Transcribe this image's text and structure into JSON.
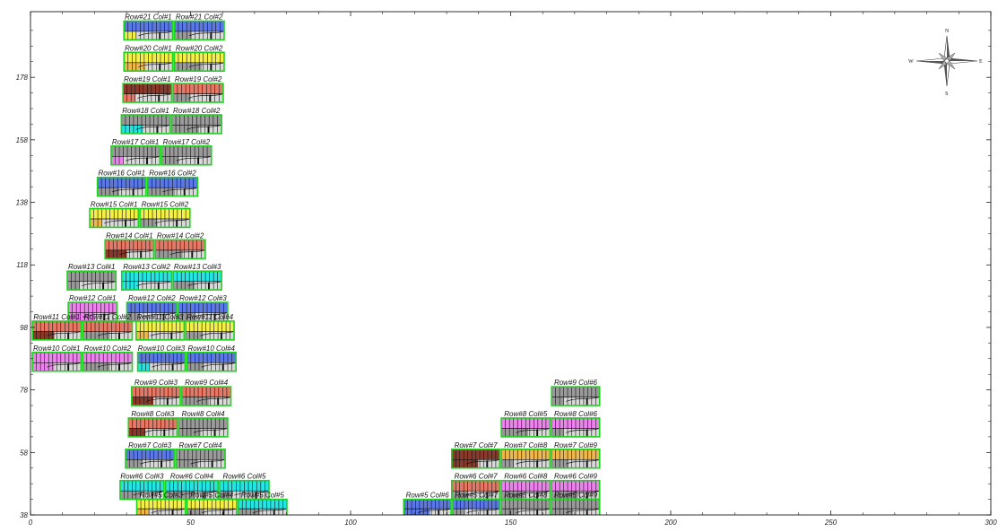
{
  "plot": {
    "x_range": [
      0,
      300
    ],
    "y_range": [
      38,
      199
    ],
    "x_ticks": [
      0,
      50,
      100,
      150,
      200,
      250,
      300
    ],
    "y_ticks": [
      38,
      58,
      78,
      98,
      118,
      138,
      158,
      178
    ]
  },
  "compass": {
    "n": "N",
    "s": "S",
    "e": "E",
    "w": "W"
  },
  "colors": {
    "blue": "#5a78e8",
    "cyan": "#22e6e6",
    "gray": "#9a9a9a",
    "yellow": "#f5f048",
    "orange": "#f0b848",
    "salmon": "#e87866",
    "brown": "#8a3a2a",
    "magenta": "#ee82ee",
    "outline": "#1fd21f"
  },
  "cells": [
    {
      "label": "Row#21 Col#1",
      "x0": 29.2,
      "x1": 44.4,
      "y0": 190,
      "y1": 196,
      "c1": "blue",
      "c2": "yellow"
    },
    {
      "label": "Row#21 Col#2",
      "x0": 44.9,
      "x1": 60.5,
      "y0": 190,
      "y1": 196,
      "c1": "blue",
      "c2": "gray"
    },
    {
      "label": "Row#20 Col#1",
      "x0": 29.2,
      "x1": 44.4,
      "y0": 180,
      "y1": 186,
      "c1": "yellow",
      "c2": "orange"
    },
    {
      "label": "Row#20 Col#2",
      "x0": 44.9,
      "x1": 60.5,
      "y0": 180,
      "y1": 186,
      "c1": "yellow",
      "c2": "gray"
    },
    {
      "label": "Row#19 Col#1",
      "x0": 28.9,
      "x1": 44.1,
      "y0": 170,
      "y1": 176,
      "c1": "brown",
      "c2": "salmon"
    },
    {
      "label": "Row#19 Col#2",
      "x0": 44.6,
      "x1": 60.2,
      "y0": 170,
      "y1": 176,
      "c1": "salmon",
      "c2": "gray"
    },
    {
      "label": "Row#18 Col#1",
      "x0": 28.4,
      "x1": 43.6,
      "y0": 160,
      "y1": 166,
      "c1": "gray",
      "c2": "cyan"
    },
    {
      "label": "Row#18 Col#2",
      "x0": 44.1,
      "x1": 59.7,
      "y0": 160,
      "y1": 166,
      "c1": "gray",
      "c2": "gray"
    },
    {
      "label": "Row#17 Col#1",
      "x0": 25.2,
      "x1": 40.4,
      "y0": 150,
      "y1": 156,
      "c1": "gray",
      "c2": "magenta"
    },
    {
      "label": "Row#17 Col#2",
      "x0": 40.9,
      "x1": 56.5,
      "y0": 150,
      "y1": 156,
      "c1": "gray",
      "c2": "gray"
    },
    {
      "label": "Row#16 Col#1",
      "x0": 20.9,
      "x1": 36.1,
      "y0": 140,
      "y1": 146,
      "c1": "blue",
      "c2": "gray"
    },
    {
      "label": "Row#16 Col#2",
      "x0": 36.6,
      "x1": 52.2,
      "y0": 140,
      "y1": 146,
      "c1": "blue",
      "c2": "gray"
    },
    {
      "label": "Row#15 Col#1",
      "x0": 18.5,
      "x1": 33.7,
      "y0": 130,
      "y1": 136,
      "c1": "yellow",
      "c2": "orange"
    },
    {
      "label": "Row#15 Col#2",
      "x0": 34.2,
      "x1": 49.8,
      "y0": 130,
      "y1": 136,
      "c1": "yellow",
      "c2": "gray"
    },
    {
      "label": "Row#14 Col#1",
      "x0": 23.3,
      "x1": 38.5,
      "y0": 120,
      "y1": 126,
      "c1": "salmon",
      "c2": "brown"
    },
    {
      "label": "Row#14 Col#2",
      "x0": 39.0,
      "x1": 54.6,
      "y0": 120,
      "y1": 126,
      "c1": "salmon",
      "c2": "gray"
    },
    {
      "label": "Row#13 Col#1",
      "x0": 11.5,
      "x1": 26.7,
      "y0": 110,
      "y1": 116,
      "c1": "gray",
      "c2": "gray"
    },
    {
      "label": "Row#13 Col#2",
      "x0": 28.5,
      "x1": 44.1,
      "y0": 110,
      "y1": 116,
      "c1": "cyan",
      "c2": "cyan"
    },
    {
      "label": "Row#13 Col#3",
      "x0": 44.6,
      "x1": 59.7,
      "y0": 110,
      "y1": 116,
      "c1": "cyan",
      "c2": "gray"
    },
    {
      "label": "Row#12 Col#1",
      "x0": 11.8,
      "x1": 27.0,
      "y0": 100,
      "y1": 106,
      "c1": "magenta",
      "c2": "magenta"
    },
    {
      "label": "Row#12 Col#2",
      "x0": 30.1,
      "x1": 45.7,
      "y0": 100,
      "y1": 106,
      "c1": "blue",
      "c2": "gray"
    },
    {
      "label": "Row#12 Col#3",
      "x0": 46.2,
      "x1": 61.6,
      "y0": 100,
      "y1": 106,
      "c1": "blue",
      "c2": "gray"
    },
    {
      "label": "Row#11 Col#1",
      "x0": 0.6,
      "x1": 15.8,
      "y0": 94,
      "y1": 100,
      "c1": "salmon",
      "c2": "brown"
    },
    {
      "label": "Row#11 Col#2",
      "x0": 16.3,
      "x1": 31.8,
      "y0": 94,
      "y1": 100,
      "c1": "salmon",
      "c2": "gray"
    },
    {
      "label": "Row#11 Col#3",
      "x0": 33.0,
      "x1": 48.0,
      "y0": 94,
      "y1": 100,
      "c1": "yellow",
      "c2": "orange"
    },
    {
      "label": "Row#11 Col#4",
      "x0": 48.5,
      "x1": 63.6,
      "y0": 94,
      "y1": 100,
      "c1": "yellow",
      "c2": "gray"
    },
    {
      "label": "Row#10 Col#1",
      "x0": 0.6,
      "x1": 15.8,
      "y0": 84,
      "y1": 90,
      "c1": "magenta",
      "c2": "magenta"
    },
    {
      "label": "Row#10 Col#2",
      "x0": 16.3,
      "x1": 31.8,
      "y0": 84,
      "y1": 90,
      "c1": "magenta",
      "c2": "gray"
    },
    {
      "label": "Row#10 Col#3",
      "x0": 33.5,
      "x1": 48.3,
      "y0": 84,
      "y1": 90,
      "c1": "blue",
      "c2": "cyan"
    },
    {
      "label": "Row#10 Col#4",
      "x0": 48.8,
      "x1": 64.2,
      "y0": 84,
      "y1": 90,
      "c1": "blue",
      "c2": "gray"
    },
    {
      "label": "Row#9 Col#3",
      "x0": 31.6,
      "x1": 46.8,
      "y0": 73,
      "y1": 79,
      "c1": "salmon",
      "c2": "brown"
    },
    {
      "label": "Row#9 Col#4",
      "x0": 47.3,
      "x1": 62.6,
      "y0": 73,
      "y1": 79,
      "c1": "salmon",
      "c2": "gray"
    },
    {
      "label": "Row#9 Col#6",
      "x0": 162.8,
      "x1": 177.8,
      "y0": 73,
      "y1": 79,
      "c1": "gray",
      "c2": "gray"
    },
    {
      "label": "Row#8 Col#3",
      "x0": 30.6,
      "x1": 45.8,
      "y0": 63,
      "y1": 69,
      "c1": "salmon",
      "c2": "brown"
    },
    {
      "label": "Row#8 Col#4",
      "x0": 46.3,
      "x1": 61.6,
      "y0": 63,
      "y1": 69,
      "c1": "gray",
      "c2": "gray"
    },
    {
      "label": "Row#8 Col#5",
      "x0": 147.1,
      "x1": 162.3,
      "y0": 63,
      "y1": 69,
      "c1": "magenta",
      "c2": "gray"
    },
    {
      "label": "Row#8 Col#6",
      "x0": 162.8,
      "x1": 177.8,
      "y0": 63,
      "y1": 69,
      "c1": "magenta",
      "c2": "gray"
    },
    {
      "label": "Row#7 Col#3",
      "x0": 29.7,
      "x1": 44.9,
      "y0": 53,
      "y1": 59,
      "c1": "blue",
      "c2": "gray"
    },
    {
      "label": "Row#7 Col#4",
      "x0": 45.4,
      "x1": 60.8,
      "y0": 53,
      "y1": 59,
      "c1": "gray",
      "c2": "gray"
    },
    {
      "label": "Row#7 Col#7",
      "x0": 131.6,
      "x1": 146.6,
      "y0": 53,
      "y1": 59,
      "c1": "brown",
      "c2": "brown"
    },
    {
      "label": "Row#7 Col#8",
      "x0": 147.1,
      "x1": 162.3,
      "y0": 53,
      "y1": 59,
      "c1": "orange",
      "c2": "gray"
    },
    {
      "label": "Row#7 Col#9",
      "x0": 162.8,
      "x1": 177.8,
      "y0": 53,
      "y1": 59,
      "c1": "orange",
      "c2": "gray"
    },
    {
      "label": "Row#6 Col#3",
      "x0": 28.0,
      "x1": 41.7,
      "y0": 43,
      "y1": 49,
      "c1": "cyan",
      "c2": "gray"
    },
    {
      "label": "Row#6 Col#4",
      "x0": 42.2,
      "x1": 58.6,
      "y0": 43,
      "y1": 49,
      "c1": "cyan",
      "c2": "gray"
    },
    {
      "label": "Row#6 Col#5",
      "x0": 59.1,
      "x1": 74.5,
      "y0": 43,
      "y1": 49,
      "c1": "cyan",
      "c2": "gray"
    },
    {
      "label": "Row#6 Col#7",
      "x0": 131.6,
      "x1": 146.6,
      "y0": 43,
      "y1": 49,
      "c1": "salmon",
      "c2": "gray"
    },
    {
      "label": "Row#6 Col#8",
      "x0": 147.1,
      "x1": 162.3,
      "y0": 43,
      "y1": 49,
      "c1": "magenta",
      "c2": "gray"
    },
    {
      "label": "Row#6 Col#9",
      "x0": 162.8,
      "x1": 177.8,
      "y0": 43,
      "y1": 49,
      "c1": "magenta",
      "c2": "gray"
    },
    {
      "label": "Row#5 Col#3",
      "x0": 33.2,
      "x1": 48.4,
      "y0": 37.5,
      "y1": 43,
      "c1": "yellow",
      "c2": "orange"
    },
    {
      "label": "Row#5 Col#4",
      "x0": 48.9,
      "x1": 64.4,
      "y0": 37.5,
      "y1": 43,
      "c1": "yellow",
      "c2": "gray"
    },
    {
      "label": "Row#5 Col#5",
      "x0": 64.9,
      "x1": 80.1,
      "y0": 37.5,
      "y1": 43,
      "c1": "cyan",
      "c2": "gray"
    },
    {
      "label": "Row#5 Col#6",
      "x0": 116.6,
      "x1": 131.4,
      "y0": 37.5,
      "y1": 43,
      "c1": "blue",
      "c2": "blue"
    },
    {
      "label": "Row#5 Col#7",
      "x0": 131.9,
      "x1": 146.6,
      "y0": 37.5,
      "y1": 43,
      "c1": "blue",
      "c2": "gray"
    },
    {
      "label": "Row#5 Col#8",
      "x0": 147.1,
      "x1": 162.3,
      "y0": 37.5,
      "y1": 43,
      "c1": "gray",
      "c2": "gray"
    },
    {
      "label": "Row#5 Col#9",
      "x0": 162.8,
      "x1": 177.8,
      "y0": 37.5,
      "y1": 43,
      "c1": "gray",
      "c2": "gray"
    }
  ]
}
